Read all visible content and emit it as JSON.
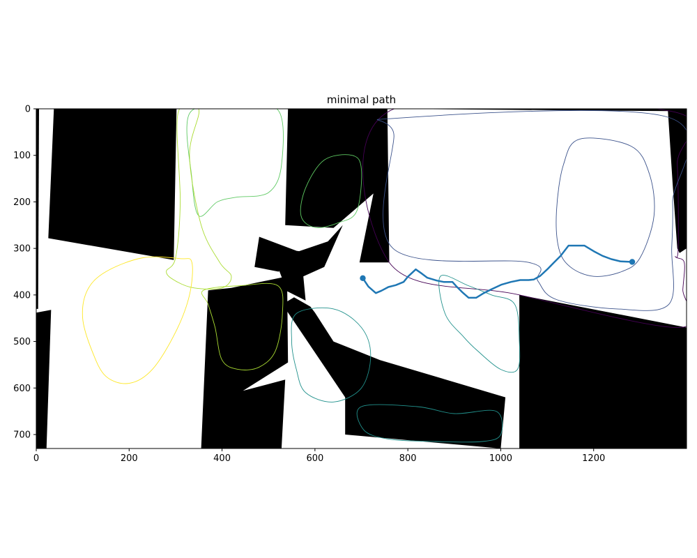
{
  "chart_data": {
    "type": "image",
    "title": "minimal path",
    "xlabel": "",
    "ylabel": "",
    "xlim": [
      0,
      1400
    ],
    "ylim": [
      730,
      0
    ],
    "xticks": [
      0,
      200,
      400,
      600,
      800,
      1000,
      1200
    ],
    "yticks": [
      0,
      100,
      200,
      300,
      400,
      500,
      600,
      700
    ],
    "grid": false,
    "legend": "none",
    "colors": {
      "obstacle": "#000000",
      "free_space": "#ffffff",
      "path": "#1f77b4",
      "contour_levels": [
        "#440154",
        "#3b528b",
        "#21918c",
        "#5ec962",
        "#aadc32",
        "#fde725"
      ]
    },
    "obstacles": [
      [
        [
          38,
          0
        ],
        [
          302,
          0
        ],
        [
          296,
          325
        ],
        [
          26,
          278
        ]
      ],
      [
        [
          0,
          0
        ],
        [
          6,
          0
        ],
        [
          4,
          430
        ],
        [
          0,
          430
        ]
      ],
      [
        [
          0,
          438
        ],
        [
          32,
          432
        ],
        [
          22,
          730
        ],
        [
          0,
          730
        ]
      ],
      [
        [
          370,
          390
        ],
        [
          420,
          385
        ],
        [
          540,
          360
        ],
        [
          542,
          545
        ],
        [
          445,
          606
        ],
        [
          536,
          582
        ],
        [
          528,
          730
        ],
        [
          355,
          730
        ]
      ],
      [
        [
          542,
          0
        ],
        [
          756,
          0
        ],
        [
          760,
          330
        ],
        [
          696,
          330
        ],
        [
          726,
          182
        ],
        [
          640,
          256
        ],
        [
          536,
          250
        ]
      ],
      [
        [
          520,
          300
        ],
        [
          566,
          306
        ],
        [
          628,
          285
        ],
        [
          660,
          250
        ],
        [
          620,
          340
        ],
        [
          575,
          360
        ],
        [
          580,
          412
        ],
        [
          540,
          392
        ],
        [
          520,
          340
        ]
      ],
      [
        [
          530,
          420
        ],
        [
          555,
          405
        ],
        [
          590,
          425
        ],
        [
          600,
          438
        ],
        [
          640,
          500
        ],
        [
          740,
          540
        ],
        [
          1010,
          620
        ],
        [
          1000,
          730
        ],
        [
          665,
          700
        ],
        [
          665,
          620
        ]
      ],
      [
        [
          760,
          0
        ],
        [
          1400,
          0
        ],
        [
          1400,
          300
        ],
        [
          1385,
          310
        ],
        [
          1380,
          300
        ],
        [
          1370,
          160
        ],
        [
          1360,
          5
        ]
      ],
      [
        [
          1040,
          400
        ],
        [
          1400,
          470
        ],
        [
          1400,
          730
        ],
        [
          1040,
          730
        ]
      ],
      [
        [
          480,
          275
        ],
        [
          560,
          305
        ],
        [
          522,
          350
        ],
        [
          470,
          340
        ]
      ],
      [
        [
          470,
          395
        ],
        [
          522,
          388
        ],
        [
          528,
          435
        ],
        [
          472,
          440
        ]
      ]
    ],
    "path": {
      "start": [
        703,
        364
      ],
      "end": [
        1283,
        329
      ],
      "x": [
        703,
        715,
        731,
        743,
        758,
        774,
        791,
        800,
        817,
        830,
        842,
        862,
        877,
        896,
        904,
        917,
        931,
        947,
        962,
        980,
        1001,
        1022,
        1042,
        1060,
        1071,
        1085,
        1100,
        1114,
        1129,
        1146,
        1180,
        1200,
        1219,
        1238,
        1258,
        1283
      ],
      "y": [
        364,
        382,
        396,
        391,
        383,
        379,
        372,
        361,
        345,
        354,
        363,
        369,
        372,
        372,
        381,
        394,
        406,
        406,
        397,
        388,
        378,
        372,
        368,
        368,
        367,
        359,
        345,
        331,
        316,
        294,
        294,
        306,
        316,
        323,
        328,
        329
      ]
    },
    "contours": [
      {
        "level": 0,
        "color": "#440154",
        "points": [
          [
            760,
            5
          ],
          [
            1365,
            5
          ],
          [
            1380,
            120
          ],
          [
            1382,
            300
          ],
          [
            1376,
            318
          ],
          [
            1395,
            330
          ],
          [
            1392,
            388
          ],
          [
            1385,
            470
          ],
          [
            1040,
            400
          ],
          [
            760,
            330
          ]
        ]
      },
      {
        "level": 1,
        "color": "#3b528b",
        "points": [
          [
            780,
            20
          ],
          [
            1360,
            18
          ],
          [
            1370,
            200
          ],
          [
            1368,
            300
          ],
          [
            1362,
            420
          ],
          [
            1250,
            430
          ],
          [
            1120,
            410
          ],
          [
            1080,
            370
          ],
          [
            1060,
            330
          ],
          [
            768,
            300
          ],
          [
            770,
            60
          ]
        ]
      },
      {
        "level": 2,
        "color": "#3b528b",
        "points": [
          [
            1170,
            65
          ],
          [
            1280,
            80
          ],
          [
            1320,
            140
          ],
          [
            1330,
            230
          ],
          [
            1300,
            320
          ],
          [
            1260,
            350
          ],
          [
            1200,
            360
          ],
          [
            1150,
            340
          ],
          [
            1125,
            300
          ],
          [
            1120,
            220
          ],
          [
            1135,
            120
          ]
        ]
      },
      {
        "level": 3,
        "color": "#21918c",
        "points": [
          [
            870,
            360
          ],
          [
            930,
            380
          ],
          [
            980,
            400
          ],
          [
            1030,
            420
          ],
          [
            1040,
            500
          ],
          [
            1036,
            560
          ],
          [
            1000,
            560
          ],
          [
            950,
            520
          ],
          [
            920,
            490
          ],
          [
            880,
            440
          ]
        ]
      },
      {
        "level": 4,
        "color": "#5ec962",
        "points": [
          [
            330,
            10
          ],
          [
            420,
            0
          ],
          [
            520,
            2
          ],
          [
            528,
            120
          ],
          [
            500,
            180
          ],
          [
            430,
            190
          ],
          [
            390,
            200
          ],
          [
            350,
            230
          ],
          [
            335,
            150
          ]
        ]
      },
      {
        "level": 5,
        "color": "#5ec962",
        "points": [
          [
            620,
            110
          ],
          [
            680,
            100
          ],
          [
            700,
            130
          ],
          [
            690,
            220
          ],
          [
            650,
            245
          ],
          [
            600,
            255
          ],
          [
            570,
            230
          ],
          [
            580,
            170
          ]
        ]
      },
      {
        "level": 6,
        "color": "#aadc32",
        "points": [
          [
            305,
            10
          ],
          [
            350,
            2
          ],
          [
            330,
            100
          ],
          [
            355,
            250
          ],
          [
            395,
            330
          ],
          [
            420,
            360
          ],
          [
            400,
            385
          ],
          [
            340,
            385
          ],
          [
            300,
            370
          ],
          [
            280,
            350
          ],
          [
            300,
            320
          ],
          [
            310,
            200
          ]
        ]
      },
      {
        "level": 7,
        "color": "#fde725",
        "points": [
          [
            110,
            390
          ],
          [
            150,
            350
          ],
          [
            230,
            320
          ],
          [
            310,
            322
          ],
          [
            335,
            330
          ],
          [
            330,
            400
          ],
          [
            300,
            480
          ],
          [
            250,
            560
          ],
          [
            200,
            590
          ],
          [
            150,
            575
          ],
          [
            120,
            520
          ],
          [
            100,
            450
          ]
        ]
      },
      {
        "level": 8,
        "color": "#aadc32",
        "points": [
          [
            360,
            390
          ],
          [
            440,
            380
          ],
          [
            520,
            380
          ],
          [
            530,
            440
          ],
          [
            515,
            520
          ],
          [
            480,
            555
          ],
          [
            435,
            560
          ],
          [
            400,
            540
          ],
          [
            385,
            470
          ],
          [
            370,
            420
          ]
        ]
      },
      {
        "level": 9,
        "color": "#21918c",
        "points": [
          [
            560,
            440
          ],
          [
            640,
            430
          ],
          [
            700,
            470
          ],
          [
            720,
            530
          ],
          [
            700,
            600
          ],
          [
            640,
            630
          ],
          [
            580,
            610
          ],
          [
            560,
            560
          ],
          [
            550,
            500
          ]
        ]
      },
      {
        "level": 10,
        "color": "#21918c",
        "points": [
          [
            700,
            640
          ],
          [
            820,
            640
          ],
          [
            900,
            655
          ],
          [
            990,
            650
          ],
          [
            1000,
            700
          ],
          [
            960,
            715
          ],
          [
            860,
            715
          ],
          [
            760,
            710
          ],
          [
            705,
            690
          ]
        ]
      }
    ]
  }
}
